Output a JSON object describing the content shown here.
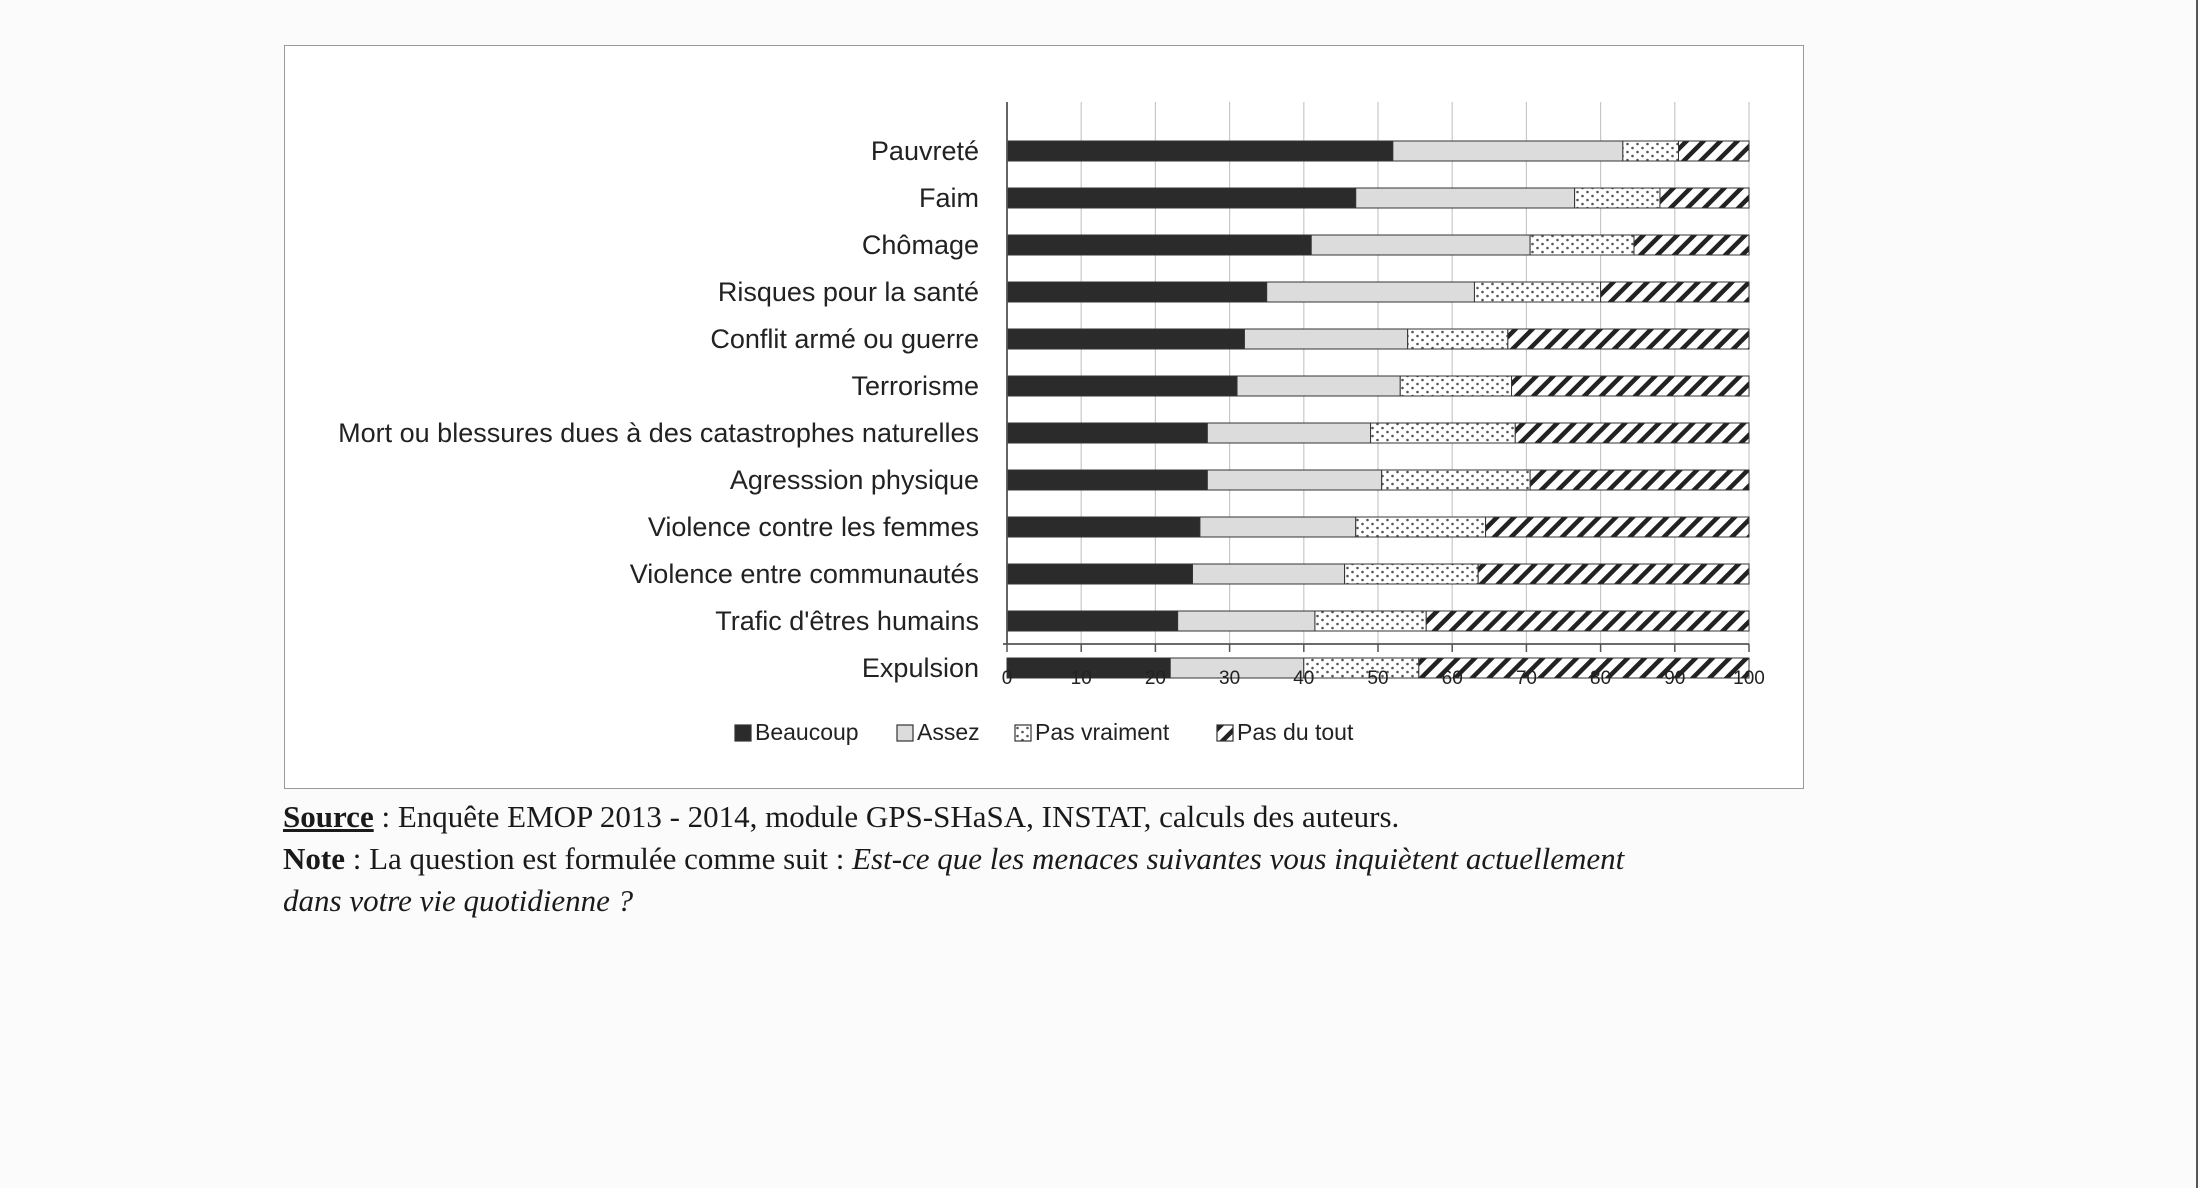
{
  "chart_data": {
    "type": "bar",
    "orientation": "horizontal",
    "stacked": true,
    "title": "",
    "xlabel": "",
    "ylabel": "",
    "xlim": [
      0,
      100
    ],
    "xticks": [
      "0",
      "10",
      "20",
      "30",
      "40",
      "50",
      "60",
      "70",
      "80",
      "90",
      "100"
    ],
    "grid": "vertical",
    "legend_position": "bottom",
    "categories": [
      "Pauvreté",
      "Faim",
      "Chômage",
      "Risques pour la santé",
      "Conflit armé ou guerre",
      "Terrorisme",
      "Mort ou blessures dues à des catastrophes naturelles",
      "Agresssion physique",
      "Violence contre les femmes",
      "Violence entre communautés",
      "Trafic d'êtres humains",
      "Expulsion"
    ],
    "series": [
      {
        "name": "Beaucoup",
        "pattern": "solid-dark",
        "color": "#2b2b2b",
        "values": [
          52,
          47,
          41,
          35,
          32,
          31,
          27,
          27,
          26,
          25,
          23,
          22
        ]
      },
      {
        "name": "Assez",
        "pattern": "solid-light",
        "color": "#dcdcdc",
        "values": [
          31,
          29.5,
          29.5,
          28,
          22,
          22,
          22,
          23.5,
          21,
          20.5,
          18.5,
          18
        ]
      },
      {
        "name": "Pas vraiment",
        "pattern": "dotted",
        "color": "#ffffff",
        "values": [
          7.5,
          11.5,
          14,
          17,
          13.5,
          15,
          19.5,
          20,
          17.5,
          18,
          15,
          15.5
        ]
      },
      {
        "name": "Pas du tout",
        "pattern": "hatched",
        "color": "#ffffff",
        "values": [
          9.5,
          12,
          15.5,
          20,
          32.5,
          32,
          31.5,
          29.5,
          35.5,
          36.5,
          43.5,
          44.5
        ]
      }
    ]
  },
  "notes": {
    "source_label": "Source",
    "source_text": " : Enquête EMOP 2013 - 2014, module GPS-SHaSA, INSTAT, calculs des auteurs.",
    "note_label": "Note",
    "note_text": " : La question est formulée comme suit : ",
    "note_question_line1": "Est-ce que les menaces suivantes vous inquiètent actuellement",
    "note_question_line2": "dans votre vie quotidienne ?"
  }
}
